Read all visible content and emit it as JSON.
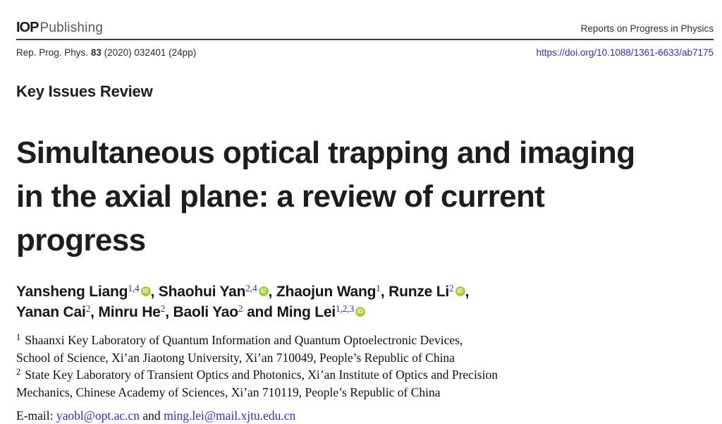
{
  "colors": {
    "text_dark": "#231f20",
    "publisher_gray": "#58585a",
    "link_blue": "#2e2ecc",
    "orcid_green": "#a6ce39",
    "rule_dark": "#3b3b3b"
  },
  "header": {
    "publisher_bold": "IOP",
    "publisher_rest": "Publishing",
    "journal_name": "Reports on Progress in Physics",
    "citation_prefix": "Rep. Prog. Phys. ",
    "citation_volume": "83",
    "citation_suffix": " (2020) 032401 (24pp)",
    "doi_url": "https://doi.org/10.1088/1361-6633/ab7175"
  },
  "article": {
    "kicker": "Key Issues Review",
    "title_lines": [
      "Simultaneous optical trapping and imaging",
      "in the axial plane: a review of current",
      "progress"
    ]
  },
  "icons": {
    "orcid_label": "iD"
  },
  "authors": [
    {
      "name": "Yansheng Liang",
      "sup": "1,4",
      "sep": ", "
    },
    {
      "name": "Shaohui Yan",
      "sup": "2,4",
      "sep": ", "
    },
    {
      "name": "Zhaojun Wang",
      "sup": "1",
      "sep": ", "
    },
    {
      "name": "Runze Li",
      "sup": "2",
      "sep": ","
    },
    {
      "name": "Yanan Cai",
      "sup": "2",
      "sep": ", "
    },
    {
      "name": "Minru He",
      "sup": "2",
      "sep": ", "
    },
    {
      "name": "Baoli Yao",
      "sup": "2",
      "sep": " and "
    },
    {
      "name": "Ming Lei",
      "sup": "1,2,3",
      "sep": ""
    }
  ],
  "affiliations": [
    {
      "sup": "1",
      "text": "Shaanxi Key Laboratory of Quantum Information and Quantum Optoelectronic Devices,"
    },
    {
      "sup": "",
      "text": "School of Science, Xi’an Jiaotong University, Xi’an 710049, People’s Republic of China"
    },
    {
      "sup": "2",
      "text": "State Key Laboratory of Transient Optics and Photonics, Xi’an Institute of Optics and Precision"
    },
    {
      "sup": "",
      "text": "Mechanics, Chinese Academy of Sciences, Xi’an 710119, People’s Republic of China"
    }
  ],
  "email": {
    "label": "E-mail: ",
    "address1": "yaobl@opt.ac.cn",
    "conjunction": " and ",
    "address2": "ming.lei@mail.xjtu.edu.cn"
  }
}
